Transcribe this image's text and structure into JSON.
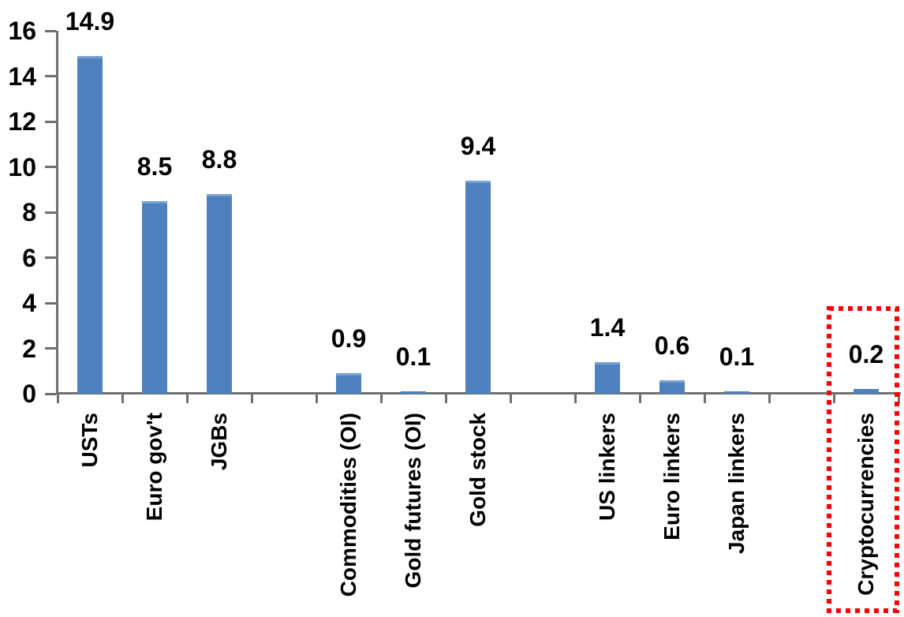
{
  "chart_data": {
    "type": "bar",
    "title": "",
    "xlabel": "",
    "ylabel": "",
    "categories": [
      "USTs",
      "Euro gov't",
      "JGBs",
      "Commodities (OI)",
      "Gold futures (OI)",
      "Gold stock",
      "US linkers",
      "Euro linkers",
      "Japan linkers",
      "Cryptocurrencies"
    ],
    "values": [
      14.9,
      8.5,
      8.8,
      0.9,
      0.1,
      9.4,
      1.4,
      0.6,
      0.1,
      0.2
    ],
    "data_labels": [
      "14.9",
      "8.5",
      "8.8",
      "0.9",
      "0.1",
      "9.4",
      "1.4",
      "0.6",
      "0.1",
      "0.2"
    ],
    "yticks": [
      0,
      2,
      4,
      6,
      8,
      10,
      12,
      14,
      16
    ],
    "ylim": [
      0,
      16
    ],
    "grid": false,
    "legend": false,
    "layout_hints": {
      "bar_slots": [
        0,
        1,
        2,
        4,
        5,
        6,
        8,
        9,
        10,
        12
      ],
      "total_slots": 13,
      "value_labels_position": "above-bars",
      "category_labels_rotation_deg": -90
    },
    "colors": {
      "bar": "#4e81bd",
      "bar_top_edge": "#76a1d2",
      "axis": "#6f6f6f",
      "text": "#000000",
      "highlight_box": "#ff0000"
    },
    "highlight": {
      "category": "Cryptocurrencies",
      "style": "dotted-rectangle"
    }
  }
}
